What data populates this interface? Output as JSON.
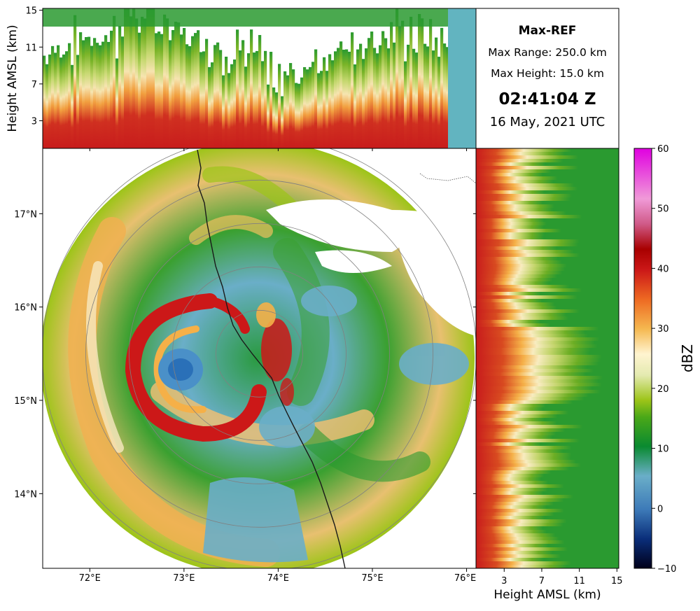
{
  "info": {
    "product": "Max-REF",
    "max_range": "Max Range: 250.0 km",
    "max_height": "Max Height: 15.0 km",
    "time": "02:41:04 Z",
    "date": "16 May, 2021 UTC"
  },
  "colors": {
    "coastline": "#1a1a1a",
    "range_rings": "#808080",
    "border": "#555555"
  },
  "chart_data": {
    "type": "heatmap",
    "title": "Max-REF",
    "main_panel": {
      "x_ticks": [
        "72°E",
        "73°E",
        "74°E",
        "75°E",
        "76°E"
      ],
      "x_tick_values": [
        72,
        73,
        74,
        75,
        76
      ],
      "y_ticks": [
        "17°N",
        "16°N",
        "15°N",
        "14°N"
      ],
      "y_tick_values": [
        17,
        16,
        15,
        14
      ],
      "xlim": [
        71.5,
        76.1
      ],
      "ylim": [
        13.2,
        17.7
      ],
      "radar_center": {
        "lon": 73.8,
        "lat": 15.5
      },
      "range_rings_km": [
        50,
        100,
        150,
        200,
        250
      ],
      "cyclone_eye": {
        "lon": 72.7,
        "lat": 15.4
      }
    },
    "top_panel": {
      "ylabel": "Height AMSL (km)",
      "y_ticks": [
        "3",
        "7",
        "11",
        "15"
      ],
      "y_tick_values": [
        3,
        7,
        11,
        15
      ],
      "ylim": [
        0,
        15.2
      ]
    },
    "right_panel": {
      "xlabel": "Height AMSL (km)",
      "x_ticks": [
        "3",
        "7",
        "11",
        "15"
      ],
      "x_tick_values": [
        3,
        7,
        11,
        15
      ],
      "xlim": [
        0,
        15.2
      ]
    },
    "colorbar": {
      "label": "dBZ",
      "ticks": [
        "60",
        "50",
        "40",
        "30",
        "20",
        "10",
        "0",
        "−10"
      ],
      "tick_values": [
        60,
        50,
        40,
        30,
        20,
        10,
        0,
        -10
      ],
      "range": [
        -10,
        60
      ]
    }
  }
}
